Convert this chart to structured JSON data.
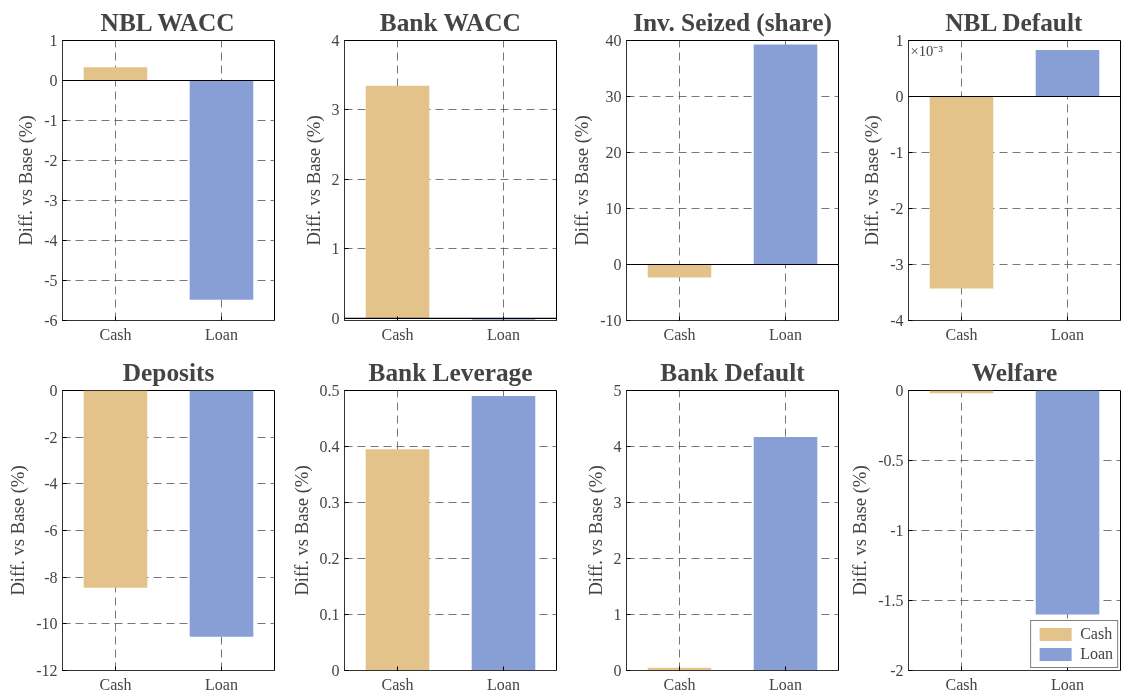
{
  "chart_data": [
    {
      "type": "bar",
      "title": "NBL WACC",
      "ylabel": "Diff. vs Base (%)",
      "categories": [
        "Cash",
        "Loan"
      ],
      "values": [
        0.33,
        -5.48
      ],
      "colors": [
        "#e3c389",
        "#889fd6"
      ],
      "ylim": [
        -6,
        1
      ],
      "yticks": [
        -6,
        -5,
        -4,
        -3,
        -2,
        -1,
        0,
        1
      ],
      "grid": true,
      "ref_lines": [
        {
          "axis": "y",
          "value": 0,
          "color": "#000000"
        }
      ]
    },
    {
      "type": "bar",
      "title": "Bank WACC",
      "ylabel": "Diff. vs Base (%)",
      "categories": [
        "Cash",
        "Loan"
      ],
      "values": [
        3.35,
        -0.02
      ],
      "colors": [
        "#e3c389",
        "#889fd6"
      ],
      "ylim": [
        -0.03,
        4
      ],
      "yticks": [
        0,
        1,
        2,
        3,
        4
      ],
      "grid": true,
      "ref_lines": [
        {
          "axis": "y",
          "value": 0,
          "color": "#000000"
        }
      ]
    },
    {
      "type": "bar",
      "title": "Inv. Seized (share)",
      "ylabel": "Diff. vs Base (%)",
      "categories": [
        "Cash",
        "Loan"
      ],
      "values": [
        -2.3,
        39.3
      ],
      "colors": [
        "#e3c389",
        "#889fd6"
      ],
      "ylim": [
        -10,
        40
      ],
      "yticks": [
        -10,
        0,
        10,
        20,
        30,
        40
      ],
      "grid": true,
      "ref_lines": [
        {
          "axis": "y",
          "value": 0,
          "color": "#000000"
        }
      ]
    },
    {
      "type": "bar",
      "title": "NBL Default",
      "ylabel": "Diff. vs Base (%)",
      "categories": [
        "Cash",
        "Loan"
      ],
      "values": [
        -3.43,
        0.83
      ],
      "colors": [
        "#e3c389",
        "#889fd6"
      ],
      "ylim": [
        -4,
        1
      ],
      "yticks": [
        -4,
        -3,
        -2,
        -1,
        0,
        1
      ],
      "grid": true,
      "annotations": [
        "×10⁻³"
      ],
      "ref_lines": [
        {
          "axis": "y",
          "value": 0,
          "color": "#000000"
        }
      ]
    },
    {
      "type": "bar",
      "title": "Deposits",
      "ylabel": "Diff. vs Base (%)",
      "categories": [
        "Cash",
        "Loan"
      ],
      "values": [
        -8.45,
        -10.55
      ],
      "colors": [
        "#e3c389",
        "#889fd6"
      ],
      "ylim": [
        -12,
        0
      ],
      "yticks": [
        -12,
        -10,
        -8,
        -6,
        -4,
        -2,
        0
      ],
      "grid": true
    },
    {
      "type": "bar",
      "title": "Bank Leverage",
      "ylabel": "Diff. vs Base (%)",
      "categories": [
        "Cash",
        "Loan"
      ],
      "values": [
        0.395,
        0.49
      ],
      "colors": [
        "#e3c389",
        "#889fd6"
      ],
      "ylim": [
        0,
        0.5
      ],
      "yticks": [
        0,
        0.1,
        0.2,
        0.3,
        0.4,
        0.5
      ],
      "grid": true
    },
    {
      "type": "bar",
      "title": "Bank Default",
      "ylabel": "Diff. vs Base (%)",
      "categories": [
        "Cash",
        "Loan"
      ],
      "values": [
        0.05,
        4.17
      ],
      "colors": [
        "#e3c389",
        "#889fd6"
      ],
      "ylim": [
        0,
        5
      ],
      "yticks": [
        0,
        1,
        2,
        3,
        4,
        5
      ],
      "grid": true
    },
    {
      "type": "bar",
      "title": "Welfare",
      "ylabel": "Diff. vs Base (%)",
      "categories": [
        "Cash",
        "Loan"
      ],
      "series": [
        {
          "name": "Cash",
          "color": "#e3c389",
          "values": [
            -0.02,
            null
          ]
        },
        {
          "name": "Loan",
          "color": "#889fd6",
          "values": [
            null,
            -1.6
          ]
        }
      ],
      "ylim": [
        -2,
        0
      ],
      "yticks": [
        -2,
        -1.5,
        -1,
        -0.5,
        0
      ],
      "grid": true,
      "legend": "bottom right"
    }
  ]
}
